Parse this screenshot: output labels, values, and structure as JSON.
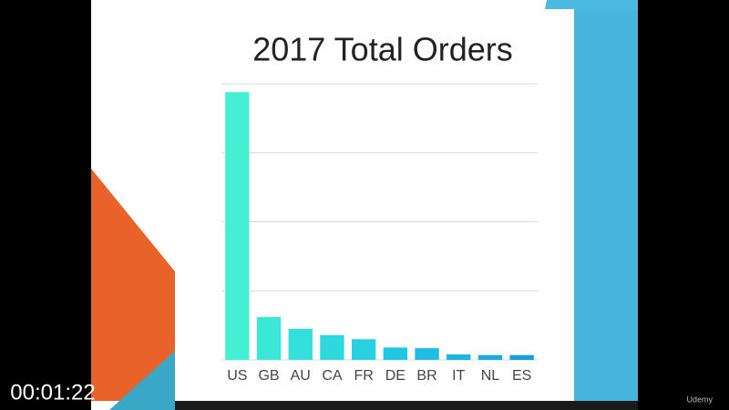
{
  "chart_data": {
    "type": "bar",
    "title": "2017 Total Orders",
    "categories": [
      "US",
      "GB",
      "AU",
      "CA",
      "FR",
      "DE",
      "BR",
      "IT",
      "NL",
      "ES"
    ],
    "values": [
      3.88,
      0.62,
      0.45,
      0.36,
      0.3,
      0.18,
      0.17,
      0.08,
      0.07,
      0.07
    ],
    "colors": [
      "#45f0d2",
      "#3ae8d6",
      "#33e0dc",
      "#2dd8de",
      "#28d0e0",
      "#22c6e2",
      "#1fbde2",
      "#1cb4e2",
      "#1aaade",
      "#189ed8"
    ],
    "ylim": [
      0,
      4
    ],
    "yticks": [
      0,
      1,
      2,
      3,
      4
    ],
    "grid": true
  },
  "player": {
    "timestamp": "00:01:22",
    "watermark": "Udemy"
  }
}
